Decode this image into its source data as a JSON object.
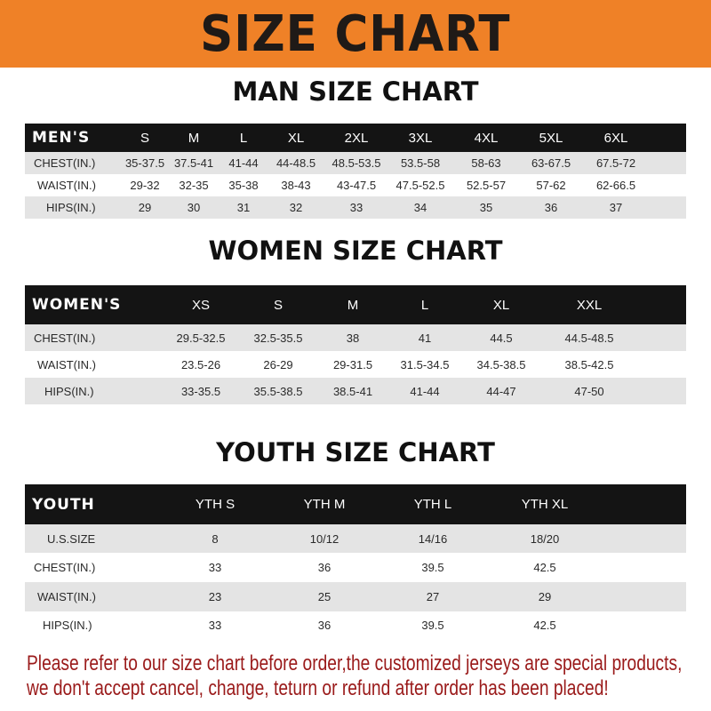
{
  "banner_title": "SIZE CHART",
  "men": {
    "title": "MAN SIZE CHART",
    "header": [
      "MEN'S",
      "S",
      "M",
      "L",
      "XL",
      "2XL",
      "3XL",
      "4XL",
      "5XL",
      "6XL"
    ],
    "rows": [
      [
        "CHEST(IN.)",
        "35-37.5",
        "37.5-41",
        "41-44",
        "44-48.5",
        "48.5-53.5",
        "53.5-58",
        "58-63",
        "63-67.5",
        "67.5-72"
      ],
      [
        "WAIST(IN.)",
        "29-32",
        "32-35",
        "35-38",
        "38-43",
        "43-47.5",
        "47.5-52.5",
        "52.5-57",
        "57-62",
        "62-66.5"
      ],
      [
        "HIPS(IN.)",
        "29",
        "30",
        "31",
        "32",
        "33",
        "34",
        "35",
        "36",
        "37"
      ]
    ]
  },
  "women": {
    "title": "WOMEN SIZE CHART",
    "header": [
      "WOMEN'S",
      "XS",
      "S",
      "M",
      "L",
      "XL",
      "XXL"
    ],
    "rows": [
      [
        "CHEST(IN.)",
        "29.5-32.5",
        "32.5-35.5",
        "38",
        "41",
        "44.5",
        "44.5-48.5"
      ],
      [
        "WAIST(IN.)",
        "23.5-26",
        "26-29",
        "29-31.5",
        "31.5-34.5",
        "34.5-38.5",
        "38.5-42.5"
      ],
      [
        "HIPS(IN.)",
        "33-35.5",
        "35.5-38.5",
        "38.5-41",
        "41-44",
        "44-47",
        "47-50"
      ]
    ]
  },
  "youth": {
    "title": "YOUTH SIZE CHART",
    "header": [
      "YOUTH",
      "YTH S",
      "YTH M",
      "YTH L",
      "YTH XL"
    ],
    "rows": [
      [
        "U.S.SIZE",
        "8",
        "10/12",
        "14/16",
        "18/20"
      ],
      [
        "CHEST(IN.)",
        "33",
        "36",
        "39.5",
        "42.5"
      ],
      [
        "WAIST(IN.)",
        "23",
        "25",
        "27",
        "29"
      ],
      [
        "HIPS(IN.)",
        "33",
        "36",
        "39.5",
        "42.5"
      ]
    ]
  },
  "notice": {
    "line1": "Please refer to our size chart before order,the customized jerseys are special products,",
    "line2": "we don't accept cancel, change, teturn or refund after order has been placed!"
  },
  "colors": {
    "banner": "#ef8127",
    "header_row": "#141414",
    "stripe": "#e4e4e4",
    "notice": "#9a1a1a"
  }
}
